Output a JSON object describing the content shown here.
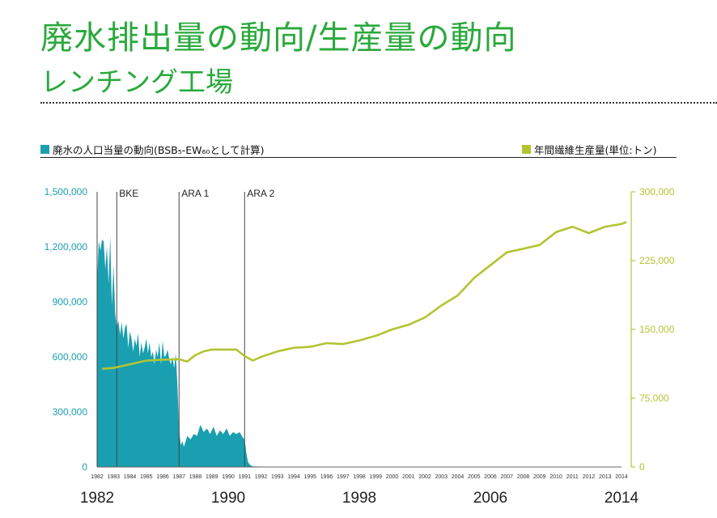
{
  "header": {
    "title_line1": "廃水排出量の動向/生産量の動向",
    "title_line2": "レンチング工場"
  },
  "legend": {
    "left": "廃水の人口当量の動向(BSB₅-EW₆₀として計算)",
    "right": "年間繊維生産量(単位:トン)",
    "left_color": "#1a9fb0",
    "right_color": "#b3c431"
  },
  "chart_data": {
    "type": "area+line",
    "y_left": {
      "range": [
        0,
        1500000
      ],
      "ticks": [
        "1,500,000",
        "1,200,000",
        "900,000",
        "600,000",
        "300,000",
        "0"
      ]
    },
    "y_right": {
      "range": [
        0,
        300000
      ],
      "ticks": [
        "300,000",
        "225,000",
        "150,000",
        "75,000",
        "0"
      ]
    },
    "year_ticks": [
      "1982",
      "1983",
      "1984",
      "1985",
      "1986",
      "1987",
      "1988",
      "1989",
      "1990",
      "1991",
      "1992",
      "1993",
      "1994",
      "1995",
      "1996",
      "1997",
      "1998",
      "1999",
      "2000",
      "2001",
      "2002",
      "2003",
      "2004",
      "2005",
      "2006",
      "2007",
      "2008",
      "2009",
      "2010",
      "2011",
      "2012",
      "2013",
      "2014"
    ],
    "big_labels": [
      "1982",
      "1990",
      "1998",
      "2006",
      "2014"
    ],
    "markers": [
      {
        "label": "BKE",
        "year": 1983.2
      },
      {
        "label": "ARA 1",
        "year": 1987.0
      },
      {
        "label": "ARA 2",
        "year": 1991.0
      }
    ],
    "series": [
      {
        "name": "廃水の人口当量の動向(BSB₅-EW₆₀として計算)",
        "kind": "area",
        "x": [
          1982.0,
          1982.1,
          1982.2,
          1982.3,
          1982.4,
          1982.5,
          1982.6,
          1982.7,
          1982.8,
          1982.9,
          1983.0,
          1983.1,
          1983.2,
          1983.3,
          1983.4,
          1983.5,
          1983.6,
          1983.7,
          1983.8,
          1983.9,
          1984.0,
          1984.1,
          1984.2,
          1984.3,
          1984.4,
          1984.5,
          1984.6,
          1984.7,
          1984.8,
          1984.9,
          1985.0,
          1985.1,
          1985.2,
          1985.3,
          1985.4,
          1985.5,
          1985.6,
          1985.7,
          1985.8,
          1985.9,
          1986.0,
          1986.1,
          1986.2,
          1986.3,
          1986.4,
          1986.5,
          1986.6,
          1986.7,
          1986.8,
          1986.9,
          1987.0,
          1987.1,
          1987.2,
          1987.3,
          1987.5,
          1987.7,
          1987.9,
          1988.1,
          1988.3,
          1988.5,
          1988.7,
          1988.9,
          1989.1,
          1989.3,
          1989.5,
          1989.7,
          1989.9,
          1990.1,
          1990.3,
          1990.5,
          1990.7,
          1990.9,
          1991.0,
          1991.1,
          1991.2,
          1991.3,
          1991.4,
          1991.5,
          1992.0,
          2014.0
        ],
        "y": [
          1000000,
          1230000,
          1180000,
          1240000,
          1230000,
          1080000,
          1200000,
          1000000,
          1260000,
          880000,
          1100000,
          840000,
          760000,
          800000,
          720000,
          790000,
          700000,
          760000,
          780000,
          650000,
          740000,
          700000,
          630000,
          700000,
          660000,
          730000,
          600000,
          680000,
          620000,
          650000,
          700000,
          620000,
          680000,
          600000,
          630000,
          560000,
          640000,
          600000,
          680000,
          560000,
          690000,
          600000,
          610000,
          640000,
          590000,
          560000,
          600000,
          540000,
          620000,
          450000,
          200000,
          120000,
          140000,
          110000,
          170000,
          150000,
          180000,
          170000,
          230000,
          190000,
          210000,
          180000,
          220000,
          170000,
          200000,
          180000,
          210000,
          170000,
          190000,
          180000,
          190000,
          160000,
          150000,
          80000,
          30000,
          15000,
          8000,
          3000,
          2000,
          2000
        ]
      },
      {
        "name": "年間繊維生産量(単位:トン)",
        "kind": "line",
        "x": [
          1982.3,
          1983,
          1984,
          1985,
          1986,
          1987,
          1987.5,
          1988,
          1988.5,
          1989,
          1990,
          1990.5,
          1991,
          1991.5,
          1992,
          1993,
          1994,
          1995,
          1996,
          1997,
          1998,
          1999,
          2000,
          2001,
          2002,
          2003,
          2004,
          2005,
          2006,
          2007,
          2008,
          2009,
          2010,
          2011,
          2012,
          2013,
          2014,
          2014.3
        ],
        "y": [
          107000,
          108000,
          112000,
          116000,
          117000,
          117500,
          115000,
          122000,
          126000,
          128000,
          128000,
          128000,
          121000,
          116000,
          120000,
          126000,
          130000,
          131000,
          135000,
          134000,
          138000,
          143000,
          150000,
          155000,
          163000,
          176000,
          187000,
          206000,
          220000,
          234000,
          238000,
          242000,
          256000,
          262000,
          255000,
          262000,
          265000,
          267000
        ]
      }
    ]
  }
}
